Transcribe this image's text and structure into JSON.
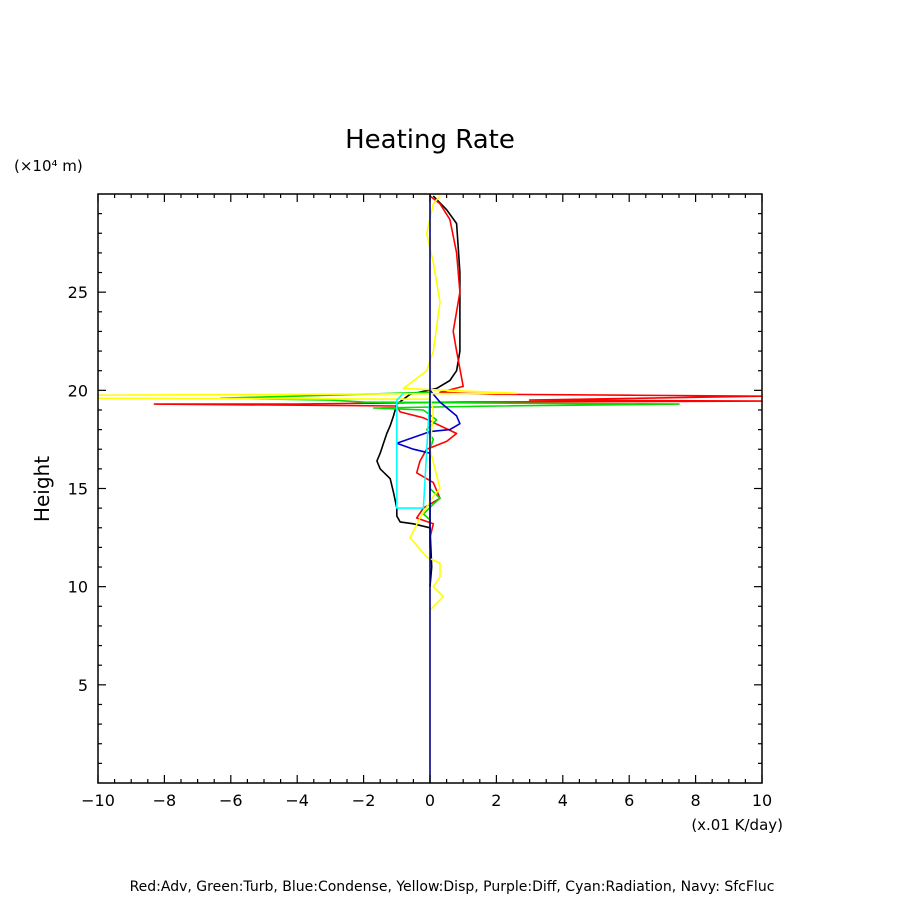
{
  "chart_data": {
    "type": "line",
    "title": "Heating Rate",
    "ylabel": "Height",
    "y_unit_label": "(×10⁴ m)",
    "x_unit_label": "(x.01 K/day)",
    "legend_text": "Red:Adv, Green:Turb, Blue:Condense, Yellow:Disp, Purple:Diff, Cyan:Radiation, Navy: SfcFluc",
    "xlim": [
      -10,
      10
    ],
    "ylim": [
      0,
      30
    ],
    "x_ticks": [
      -10,
      -8,
      -6,
      -4,
      -2,
      0,
      2,
      4,
      6,
      8,
      10
    ],
    "x_tick_labels": [
      "−10",
      "−8",
      "−6",
      "−4",
      "−2",
      "0",
      "2",
      "4",
      "6",
      "8",
      "10"
    ],
    "y_ticks": [
      5,
      10,
      15,
      20,
      25
    ],
    "y_tick_labels": [
      "5",
      "10",
      "15",
      "20",
      "25"
    ],
    "grid": false,
    "series": [
      {
        "color": "#000000",
        "points": [
          [
            0.1,
            29.9
          ],
          [
            0.5,
            29.2
          ],
          [
            0.8,
            28.5
          ],
          [
            0.9,
            26
          ],
          [
            0.9,
            24
          ],
          [
            0.9,
            22
          ],
          [
            0.8,
            21
          ],
          [
            0.6,
            20.5
          ],
          [
            0.2,
            20.1
          ],
          [
            -0.6,
            19.8
          ],
          [
            -1.0,
            19.3
          ],
          [
            -1.1,
            18.7
          ],
          [
            -1.2,
            18.2
          ],
          [
            -1.3,
            17.8
          ],
          [
            -1.4,
            17.3
          ],
          [
            -1.5,
            16.8
          ],
          [
            -1.6,
            16.4
          ],
          [
            -1.5,
            16.0
          ],
          [
            -1.2,
            15.5
          ],
          [
            -1.1,
            14.8
          ],
          [
            -1.0,
            14.0
          ],
          [
            -1.0,
            13.6
          ],
          [
            -0.9,
            13.3
          ],
          [
            -0.5,
            13.2
          ],
          [
            0,
            13
          ],
          [
            0.05,
            11
          ],
          [
            0,
            10
          ]
        ]
      },
      {
        "color": "#ff0000",
        "points": [
          [
            0,
            29.9
          ],
          [
            0.3,
            29.5
          ],
          [
            0.6,
            28.7
          ],
          [
            0.8,
            27
          ],
          [
            0.9,
            25
          ],
          [
            0.7,
            23
          ],
          [
            0.8,
            22
          ],
          [
            1.0,
            20.2
          ],
          [
            0.3,
            19.9
          ],
          [
            2.0,
            19.8
          ],
          [
            6.0,
            19.75
          ],
          [
            10,
            19.7
          ],
          [
            3.0,
            19.5
          ],
          [
            10,
            19.45
          ],
          [
            1.0,
            19.4
          ],
          [
            -4.0,
            19.3
          ],
          [
            -8.3,
            19.3
          ],
          [
            -1.0,
            19.2
          ],
          [
            -0.9,
            18.9
          ],
          [
            -0.2,
            18.6
          ],
          [
            0.8,
            17.8
          ],
          [
            0.5,
            17.4
          ],
          [
            -0.1,
            17.0
          ],
          [
            -0.3,
            16.4
          ],
          [
            -0.4,
            15.8
          ],
          [
            0.1,
            15.3
          ],
          [
            0.3,
            14.5
          ],
          [
            -0.2,
            14.0
          ],
          [
            -0.4,
            13.5
          ],
          [
            0.1,
            13.2
          ],
          [
            0,
            12.5
          ]
        ]
      },
      {
        "color": "#00dd00",
        "points": [
          [
            0,
            19.9
          ],
          [
            -6.3,
            19.6
          ],
          [
            -3.0,
            19.5
          ],
          [
            -2.0,
            19.4
          ],
          [
            2.0,
            19.35
          ],
          [
            7.5,
            19.3
          ],
          [
            2.0,
            19.2
          ],
          [
            -1.7,
            19.1
          ],
          [
            -0.2,
            19.0
          ],
          [
            0.2,
            18.5
          ],
          [
            -0.1,
            18.0
          ],
          [
            0.1,
            17.5
          ],
          [
            0,
            17
          ],
          [
            0,
            15
          ],
          [
            0.3,
            14.5
          ],
          [
            0.1,
            14.2
          ],
          [
            -0.2,
            13.7
          ],
          [
            0,
            13.4
          ]
        ]
      },
      {
        "color": "#0000cc",
        "points": [
          [
            0,
            20
          ],
          [
            0.3,
            19.4
          ],
          [
            0.8,
            18.7
          ],
          [
            0.9,
            18.3
          ],
          [
            0.6,
            18.0
          ],
          [
            0,
            17.9
          ],
          [
            -1.0,
            17.3
          ],
          [
            -0.5,
            17.0
          ],
          [
            0,
            16.8
          ],
          [
            0,
            12
          ]
        ]
      },
      {
        "color": "#ffff00",
        "points": [
          [
            0.3,
            29.9
          ],
          [
            0.1,
            29.5
          ],
          [
            -0.1,
            28
          ],
          [
            0.1,
            26.5
          ],
          [
            0.3,
            24.5
          ],
          [
            0.1,
            22
          ],
          [
            -0.1,
            21
          ],
          [
            -0.8,
            20.1
          ],
          [
            2.6,
            19.85
          ],
          [
            -10,
            19.75
          ],
          [
            -10,
            19.6
          ],
          [
            0,
            19.55
          ],
          [
            0.1,
            19
          ],
          [
            0,
            17
          ],
          [
            0.3,
            15
          ],
          [
            0.1,
            14.6
          ],
          [
            -0.3,
            13.5
          ],
          [
            -0.6,
            12.5
          ],
          [
            -0.1,
            11.5
          ],
          [
            0.3,
            11.2
          ],
          [
            0.3,
            10.5
          ],
          [
            0.1,
            10
          ],
          [
            0.4,
            9.5
          ],
          [
            0,
            8.8
          ]
        ]
      },
      {
        "color": "#00ffff",
        "points": [
          [
            -0.8,
            19.85
          ],
          [
            -1.0,
            19.5
          ],
          [
            -1.0,
            17.5
          ],
          [
            -1.0,
            14.0
          ],
          [
            -0.2,
            14.0
          ],
          [
            0,
            19.85
          ]
        ]
      },
      {
        "color": "#000080",
        "points": [
          [
            0,
            0
          ],
          [
            0,
            30
          ]
        ]
      }
    ]
  }
}
